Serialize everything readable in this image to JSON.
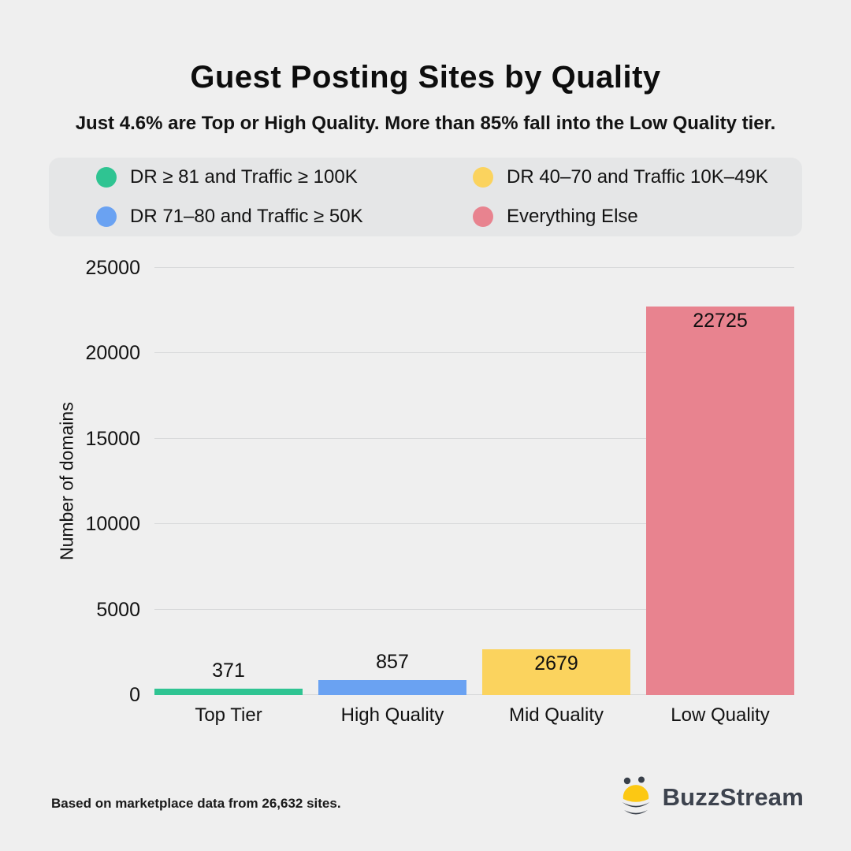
{
  "header": {
    "title": "Guest Posting Sites by Quality",
    "subtitle": "Just 4.6% are Top or High Quality. More than 85% fall into the Low Quality tier."
  },
  "legend": {
    "items": [
      {
        "label": "DR ≥ 81 and Traffic ≥ 100K",
        "color": "#2fc492"
      },
      {
        "label": "DR 71–80 and Traffic ≥ 50K",
        "color": "#6aa2f2"
      },
      {
        "label": "DR 40–70 and Traffic 10K–49K",
        "color": "#fbd35e"
      },
      {
        "label": "Everything Else",
        "color": "#e8838f"
      }
    ]
  },
  "chart_data": {
    "type": "bar",
    "title": "Guest Posting Sites by Quality",
    "categories": [
      "Top Tier",
      "High Quality",
      "Mid Quality",
      "Low Quality"
    ],
    "values": [
      371,
      857,
      2679,
      22725
    ],
    "bar_colors": [
      "#2fc492",
      "#6aa2f2",
      "#fbd35e",
      "#e8838f"
    ],
    "xlabel": "",
    "ylabel": "Number of domains",
    "ylim": [
      0,
      25000
    ],
    "yticks": [
      0,
      5000,
      10000,
      15000,
      20000,
      25000
    ],
    "grid": true,
    "legend_position": "top"
  },
  "footer": {
    "source_note": "Based on marketplace data from 26,632 sites.",
    "brand": "BuzzStream"
  },
  "colors": {
    "background": "#efefef",
    "legend_background": "#e5e6e7",
    "gridline": "#d9dadb",
    "text": "#121212",
    "brand_text": "#3d434e",
    "bee_yellow": "#fcc813",
    "bee_dark": "#39404a"
  }
}
